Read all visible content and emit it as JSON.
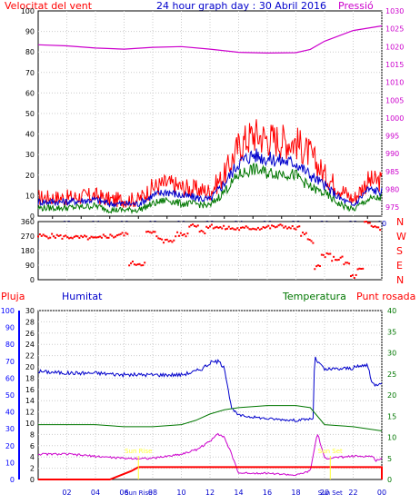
{
  "colors": {
    "red": "#ff0000",
    "blue": "#0000cc",
    "green": "#007700",
    "magenta": "#cc00cc",
    "sunrise": "#ffff33",
    "axis_blue": "#0000ff"
  },
  "top_panel": {
    "title": "24 hour graph day : 30 Abril 2016",
    "left_label": "Velocitat del vent",
    "right_label": "Pressió",
    "left_ticks": [
      "0",
      "10",
      "20",
      "30",
      "40",
      "50",
      "60",
      "70",
      "80",
      "90",
      "100"
    ],
    "right_ticks": [
      "975",
      "980",
      "985",
      "990",
      "995",
      "1000",
      "1005",
      "1010",
      "1015",
      "1020",
      "1025",
      "1030"
    ],
    "x_ticks": [
      "02",
      "04",
      "06",
      "08",
      "10",
      "12",
      "14",
      "16",
      "18",
      "20",
      "22",
      "00"
    ]
  },
  "wind_dir_panel": {
    "left_ticks": [
      "0",
      "90",
      "180",
      "270",
      "360"
    ],
    "right_ticks": [
      "N",
      "W",
      "S",
      "E",
      "N"
    ]
  },
  "bottom_panel": {
    "label_rain": "Pluja",
    "label_humidity": "Humitat",
    "label_temperature": "Temperatura",
    "label_dewpoint": "Punt rosada",
    "rain_ticks": [
      "0",
      "2",
      "4",
      "6",
      "8",
      "10",
      "12",
      "14",
      "16",
      "18",
      "20",
      "22",
      "24",
      "26",
      "28",
      "30"
    ],
    "humidity_ticks": [
      "0",
      "10",
      "20",
      "30",
      "40",
      "50",
      "60",
      "70",
      "80",
      "90",
      "100"
    ],
    "temp_ticks": [
      "0",
      "5",
      "10",
      "15",
      "20",
      "25",
      "30",
      "35",
      "40"
    ],
    "x_ticks": [
      "02",
      "04",
      "06",
      "08",
      "10",
      "12",
      "14",
      "16",
      "18",
      "20",
      "22",
      "00"
    ],
    "sun_rise_label": "Sun Rise",
    "sun_rise_bottom": "Sun Rise",
    "sun_set_label": "Sun Set",
    "sun_set_bottom": "Sun Set"
  },
  "chart_data": [
    {
      "type": "line",
      "title": "24 hour graph day : 30 Abril 2016",
      "x_unit": "hour",
      "xlim": [
        0,
        24
      ],
      "left_axis": {
        "label": "Velocitat del vent",
        "range": [
          0,
          100
        ]
      },
      "right_axis": {
        "label": "Pressió",
        "range": [
          972.5,
          1030
        ]
      },
      "series": [
        {
          "name": "Velocitat del vent",
          "axis": "left",
          "color": "#ff0000",
          "x": [
            0,
            2,
            4,
            5,
            7,
            8,
            9,
            10,
            11,
            12,
            13,
            14,
            15,
            16,
            17,
            18,
            19,
            20,
            21,
            22,
            23,
            24
          ],
          "values": [
            9,
            9,
            10,
            8,
            8,
            14,
            16,
            14,
            13,
            12,
            20,
            34,
            40,
            38,
            37,
            36,
            30,
            20,
            14,
            8,
            17,
            17
          ]
        },
        {
          "name": "",
          "axis": "left",
          "color": "#0000cc",
          "x": [
            0,
            2,
            4,
            5,
            7,
            8,
            9,
            10,
            11,
            12,
            13,
            14,
            15,
            16,
            17,
            18,
            19,
            20,
            21,
            22,
            23,
            24
          ],
          "values": [
            7,
            7,
            8,
            6,
            6,
            10,
            12,
            10,
            9,
            8,
            16,
            26,
            30,
            28,
            27,
            26,
            20,
            15,
            9,
            5,
            13,
            12
          ]
        },
        {
          "name": "",
          "axis": "left",
          "color": "#007700",
          "x": [
            0,
            2,
            4,
            5,
            7,
            8,
            9,
            10,
            11,
            12,
            13,
            14,
            15,
            16,
            17,
            18,
            19,
            20,
            21,
            22,
            23,
            24
          ],
          "values": [
            4,
            4,
            5,
            3,
            3,
            6,
            8,
            6,
            6,
            5,
            12,
            20,
            23,
            21,
            21,
            20,
            14,
            11,
            6,
            3,
            8,
            9
          ]
        },
        {
          "name": "Pressió",
          "axis": "right",
          "color": "#cc00cc",
          "x": [
            0,
            2,
            4,
            6,
            8,
            10,
            12,
            14,
            16,
            18,
            19,
            20,
            22,
            24
          ],
          "values": [
            1020.5,
            1020.2,
            1019.6,
            1019.3,
            1019.8,
            1020.0,
            1019.3,
            1018.4,
            1018.2,
            1018.3,
            1019.2,
            1021.5,
            1024.5,
            1025.8
          ]
        }
      ]
    },
    {
      "type": "scatter",
      "x_unit": "hour",
      "xlim": [
        0,
        24
      ],
      "ylim": [
        0,
        360
      ],
      "series": [
        {
          "name": "",
          "color": "#ff0000",
          "x": [
            0,
            1,
            2,
            3,
            4,
            5,
            6,
            6.5,
            7,
            8,
            8.5,
            9,
            10,
            11,
            11.5,
            12,
            13,
            14,
            15,
            16,
            17,
            18,
            18.5,
            19,
            19.5,
            20,
            21,
            21.5,
            22,
            22.5,
            23,
            23.5,
            24
          ],
          "values": [
            270,
            270,
            265,
            260,
            255,
            270,
            280,
            100,
            100,
            290,
            260,
            240,
            280,
            340,
            300,
            330,
            320,
            315,
            320,
            325,
            330,
            320,
            280,
            240,
            80,
            150,
            130,
            100,
            20,
            60,
            350,
            330,
            320
          ]
        }
      ]
    },
    {
      "type": "line",
      "x_unit": "hour",
      "xlim": [
        0,
        24
      ],
      "left_axis_rain": {
        "label": "Pluja",
        "range": [
          0,
          30
        ]
      },
      "left_axis_humidity": {
        "label": "Humitat",
        "range": [
          0,
          100
        ]
      },
      "right_axis": {
        "label": "Temperatura",
        "range": [
          0,
          40
        ]
      },
      "series": [
        {
          "name": "Humitat",
          "axis": "humidity",
          "color": "#0000cc",
          "x": [
            0,
            2,
            4,
            6,
            8,
            10,
            11,
            11.5,
            12,
            12.5,
            13,
            13.5,
            14,
            16,
            18,
            19.2,
            19.3,
            20,
            22,
            23,
            23.3,
            23.6,
            24
          ],
          "values": [
            64,
            63,
            63,
            62,
            62,
            62,
            64,
            66,
            69,
            70,
            67,
            42,
            38,
            36,
            35,
            36,
            72,
            65,
            66,
            68,
            57,
            56,
            58
          ]
        },
        {
          "name": "Temperatura",
          "axis": "temp",
          "color": "#007700",
          "x": [
            0,
            2,
            4,
            6,
            8,
            10,
            11,
            12,
            13,
            14,
            16,
            18,
            19,
            20,
            22,
            24
          ],
          "values": [
            13,
            13,
            13,
            12.5,
            12.5,
            13,
            14,
            15.5,
            16.5,
            17,
            17.5,
            17.5,
            17,
            13,
            12.5,
            11.5
          ]
        },
        {
          "name": "Punt rosada",
          "axis": "temp",
          "color": "#cc00cc",
          "x": [
            0,
            2,
            4,
            6,
            8,
            10,
            11,
            12,
            12.5,
            13,
            13.5,
            14,
            16,
            18,
            19,
            19.5,
            20,
            22,
            23.3,
            23.6,
            24
          ],
          "values": [
            6,
            6,
            5.5,
            5,
            5,
            6,
            7,
            9,
            11,
            10,
            6,
            1.5,
            1.5,
            1,
            2,
            11,
            5,
            5.5,
            5.5,
            4.5,
            5
          ]
        },
        {
          "name": "Pluja",
          "axis": "rain",
          "color": "#ff0000",
          "x": [
            0,
            5,
            6.5,
            7,
            24,
            24
          ],
          "values": [
            0,
            0,
            1.5,
            2.2,
            2.2,
            0
          ]
        }
      ],
      "sun_rise_hour": 7.0,
      "sun_set_hour": 20.4
    }
  ]
}
